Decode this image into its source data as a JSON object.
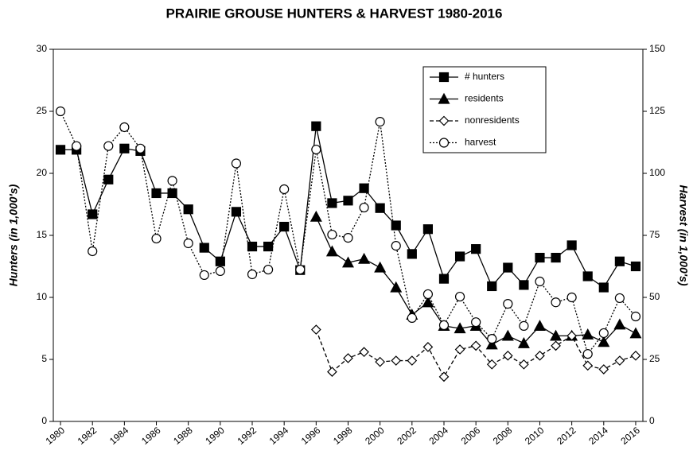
{
  "chart_data": {
    "type": "line",
    "title": "PRAIRIE GROUSE HUNTERS & HARVEST 1980-2016",
    "y_label": "Hunters (in 1,000's)",
    "y2_label": "Harvest (in 1,000's)",
    "x": [
      1980,
      1981,
      1982,
      1983,
      1984,
      1985,
      1986,
      1987,
      1988,
      1989,
      1990,
      1991,
      1992,
      1993,
      1994,
      1995,
      1996,
      1997,
      1998,
      1999,
      2000,
      2001,
      2002,
      2003,
      2004,
      2005,
      2006,
      2007,
      2008,
      2009,
      2010,
      2011,
      2012,
      2013,
      2014,
      2015,
      2016
    ],
    "xlim": [
      1979.55,
      2016.45
    ],
    "xticks": [
      1980,
      1982,
      1984,
      1986,
      1988,
      1990,
      1992,
      1994,
      1996,
      1998,
      2000,
      2002,
      2004,
      2006,
      2008,
      2010,
      2012,
      2014,
      2016
    ],
    "ylim": [
      0,
      30
    ],
    "yticks": [
      0,
      5,
      10,
      15,
      20,
      25,
      30
    ],
    "y2lim": [
      0,
      150
    ],
    "y2ticks": [
      0,
      25,
      50,
      75,
      100,
      125,
      150
    ],
    "legend": "upper right",
    "series": [
      {
        "name": "# hunters",
        "color": "#000000",
        "marker": "square",
        "dash": "solid",
        "values": [
          21.9,
          21.9,
          16.7,
          19.5,
          22.0,
          21.8,
          18.4,
          18.4,
          17.1,
          14.0,
          12.9,
          16.9,
          14.1,
          14.1,
          15.7,
          12.2,
          23.8,
          17.6,
          17.8,
          18.8,
          17.2,
          15.8,
          13.5,
          15.5,
          11.5,
          13.3,
          13.9,
          10.9,
          12.4,
          11.0,
          13.2,
          13.2,
          14.2,
          11.7,
          10.8,
          12.9,
          12.5
        ]
      },
      {
        "name": "residents",
        "color": "#000000",
        "marker": "triangle",
        "dash": "solid",
        "values": [
          null,
          null,
          null,
          null,
          null,
          null,
          null,
          null,
          null,
          null,
          null,
          null,
          null,
          null,
          null,
          null,
          16.5,
          13.7,
          12.8,
          13.1,
          12.4,
          10.8,
          8.6,
          9.6,
          7.7,
          7.5,
          7.7,
          6.2,
          6.9,
          6.3,
          7.7,
          6.9,
          6.9,
          7.0,
          6.4,
          7.8,
          7.1
        ]
      },
      {
        "name": "nonresidents",
        "color": "#000000",
        "marker": "diamond",
        "dash": "dashed",
        "values": [
          null,
          null,
          null,
          null,
          null,
          null,
          null,
          null,
          null,
          null,
          null,
          null,
          null,
          null,
          null,
          null,
          7.4,
          4.0,
          5.1,
          5.6,
          4.8,
          4.9,
          4.9,
          6.0,
          3.6,
          5.8,
          6.1,
          4.6,
          5.3,
          4.6,
          5.3,
          6.1,
          6.9,
          4.5,
          4.2,
          4.9,
          5.3
        ]
      },
      {
        "name": "harvest",
        "color": "#000000",
        "marker": "circle",
        "dash": "dotted",
        "axis": "y2",
        "values": [
          125,
          111,
          68.6,
          111,
          118.6,
          110,
          73.7,
          97,
          71.8,
          59,
          60.6,
          104,
          59.3,
          61.2,
          93.6,
          61.2,
          109.6,
          75.3,
          74,
          86.2,
          120.8,
          70.8,
          41.7,
          51.3,
          38.8,
          50.3,
          40,
          33.3,
          47.4,
          38.5,
          56.4,
          48,
          50,
          27.2,
          35.6,
          49.7,
          42.3
        ]
      }
    ]
  }
}
